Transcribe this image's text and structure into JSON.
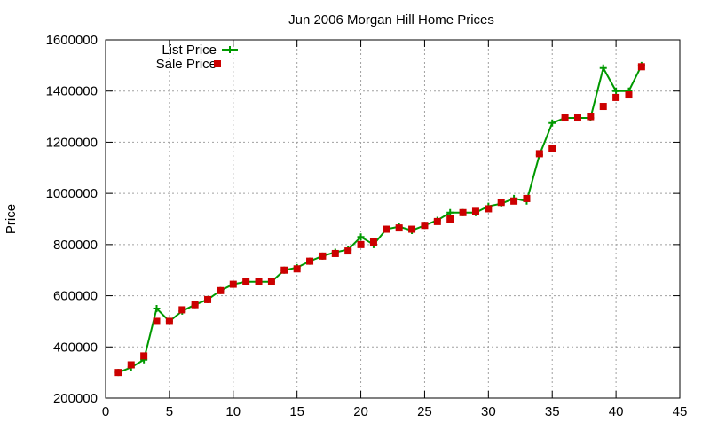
{
  "chart_data": {
    "type": "line",
    "title": "Jun 2006 Morgan Hill Home Prices",
    "xlabel": "",
    "ylabel": "Price",
    "xlim": [
      0,
      45
    ],
    "ylim": [
      200000,
      1600000
    ],
    "x_ticks": [
      0,
      5,
      10,
      15,
      20,
      25,
      30,
      35,
      40,
      45
    ],
    "y_ticks": [
      200000,
      400000,
      600000,
      800000,
      1000000,
      1200000,
      1400000,
      1600000
    ],
    "grid": true,
    "legend_position": "top-left",
    "series": [
      {
        "name": "List Price",
        "style": "line-with-plus-markers",
        "color": "#009900",
        "x": [
          1,
          2,
          3,
          4,
          5,
          6,
          7,
          8,
          9,
          10,
          11,
          12,
          13,
          14,
          15,
          16,
          17,
          18,
          19,
          20,
          21,
          22,
          23,
          24,
          25,
          26,
          27,
          28,
          29,
          30,
          31,
          32,
          33,
          34,
          35,
          36,
          37,
          38,
          39,
          40,
          41,
          42
        ],
        "values": [
          300000,
          320000,
          350000,
          550000,
          500000,
          540000,
          565000,
          585000,
          620000,
          645000,
          655000,
          655000,
          655000,
          700000,
          710000,
          735000,
          755000,
          770000,
          780000,
          830000,
          800000,
          860000,
          870000,
          855000,
          875000,
          895000,
          925000,
          925000,
          925000,
          950000,
          960000,
          980000,
          970000,
          1150000,
          1275000,
          1295000,
          1295000,
          1295000,
          1490000,
          1400000,
          1400000,
          1500000
        ]
      },
      {
        "name": "Sale Price",
        "style": "square-markers",
        "color": "#cc0000",
        "x": [
          1,
          2,
          3,
          4,
          5,
          6,
          7,
          8,
          9,
          10,
          11,
          12,
          13,
          14,
          15,
          16,
          17,
          18,
          19,
          20,
          21,
          22,
          23,
          24,
          25,
          26,
          27,
          28,
          29,
          30,
          31,
          32,
          33,
          34,
          35,
          36,
          37,
          38,
          39,
          40,
          41,
          42
        ],
        "values": [
          300000,
          330000,
          365000,
          500000,
          500000,
          545000,
          565000,
          585000,
          620000,
          645000,
          655000,
          655000,
          655000,
          700000,
          705000,
          735000,
          755000,
          765000,
          775000,
          800000,
          810000,
          860000,
          865000,
          860000,
          875000,
          890000,
          900000,
          925000,
          930000,
          940000,
          965000,
          970000,
          980000,
          1155000,
          1175000,
          1295000,
          1295000,
          1300000,
          1340000,
          1375000,
          1385000,
          1495000
        ]
      }
    ]
  }
}
